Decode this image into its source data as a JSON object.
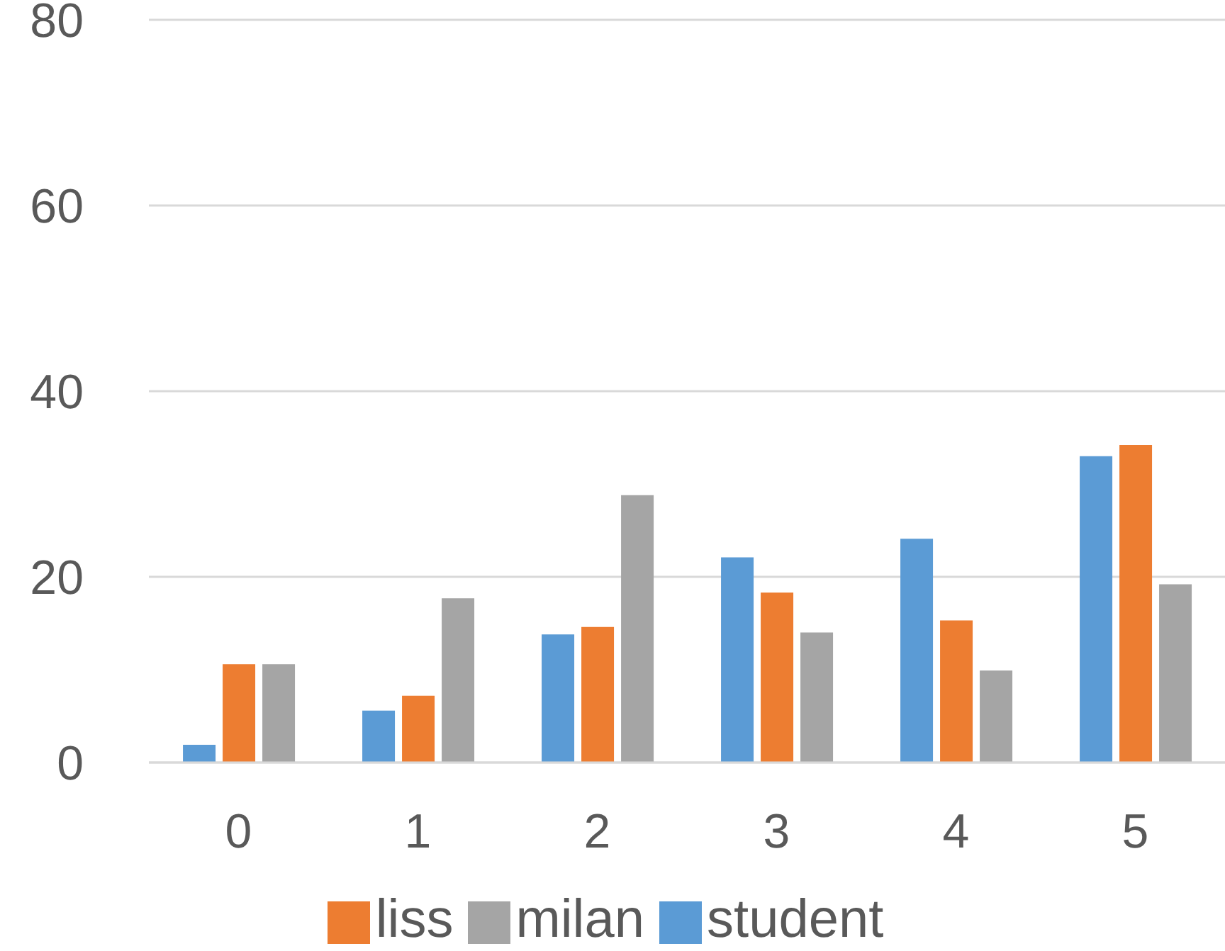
{
  "chart_data": {
    "type": "bar",
    "categories": [
      "0",
      "1",
      "2",
      "3",
      "4",
      "5"
    ],
    "series": [
      {
        "name": "student",
        "color": "#5b9bd5",
        "values": [
          1.9,
          5.6,
          13.8,
          22.1,
          24.1,
          33.0
        ]
      },
      {
        "name": "liss",
        "color": "#ed7d31",
        "values": [
          10.6,
          7.2,
          14.6,
          18.3,
          15.3,
          34.2
        ]
      },
      {
        "name": "milan",
        "color": "#a5a5a5",
        "values": [
          10.6,
          17.7,
          28.8,
          14.0,
          9.9,
          19.2
        ]
      }
    ],
    "ylim": [
      0,
      80
    ],
    "yticks": [
      0,
      20,
      40,
      60,
      80
    ],
    "grid": "y",
    "legend": "bottom"
  }
}
